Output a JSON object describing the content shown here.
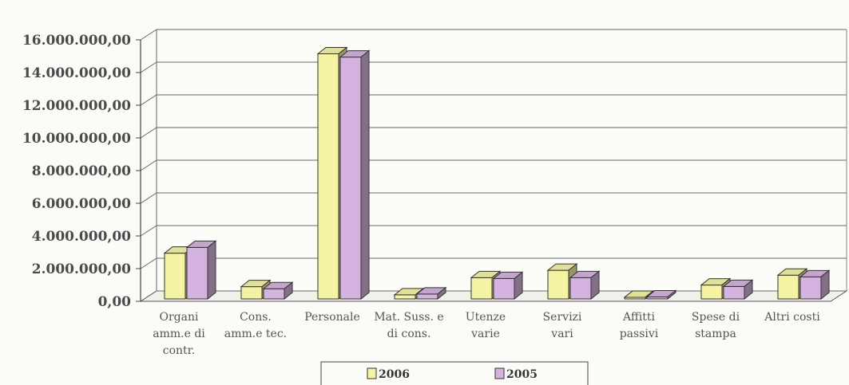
{
  "chart_data": {
    "type": "bar",
    "categories": [
      [
        "Organi",
        "amm.e di",
        "contr."
      ],
      [
        "Cons.",
        "amm.e tec."
      ],
      [
        "Personale"
      ],
      [
        "Mat. Suss. e",
        "di cons."
      ],
      [
        "Utenze",
        "varie"
      ],
      [
        "Servizi",
        "vari"
      ],
      [
        "Affitti",
        "passivi"
      ],
      [
        "Spese di",
        "stampa"
      ],
      [
        "Altri costi"
      ]
    ],
    "series": [
      {
        "name": "2006",
        "color": "#f4f3a4",
        "values": [
          2800000,
          750000,
          15000000,
          250000,
          1300000,
          1750000,
          100000,
          850000,
          1450000
        ]
      },
      {
        "name": "2005",
        "color": "#d5b3e0",
        "values": [
          3150000,
          620000,
          14800000,
          300000,
          1250000,
          1300000,
          120000,
          760000,
          1350000
        ]
      }
    ],
    "yticks": [
      "0,00",
      "2.000.000,00",
      "4.000.000,00",
      "6.000.000,00",
      "8.000.000,00",
      "10.000.000,00",
      "12.000.000,00",
      "14.000.000,00",
      "16.000.000,00"
    ],
    "ylim": [
      0,
      16000000
    ],
    "grid": true,
    "legend_position": "bottom",
    "title": "",
    "xlabel": "",
    "ylabel": ""
  }
}
